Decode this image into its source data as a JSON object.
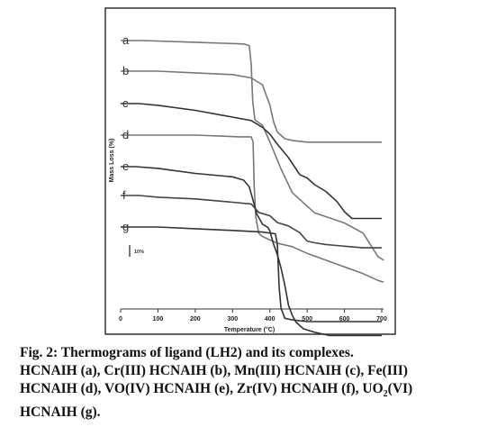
{
  "chart_data": {
    "type": "line",
    "title": "",
    "xlabel": "Temperature (°C)",
    "ylabel": "Mass Loss (%)",
    "xlim": [
      0,
      700
    ],
    "xticks": [
      "0",
      "100",
      "200",
      "300",
      "400",
      "500",
      "600",
      "700"
    ],
    "scale_bar_label": "10%",
    "grid": false,
    "legend": "none",
    "series": [
      {
        "name": "a",
        "color": "#777777",
        "points": [
          [
            0,
            100
          ],
          [
            60,
            100
          ],
          [
            200,
            99.5
          ],
          [
            330,
            99
          ],
          [
            345,
            98.5
          ],
          [
            350,
            93
          ],
          [
            354,
            82
          ],
          [
            360,
            76.5
          ],
          [
            380,
            75
          ],
          [
            400,
            70
          ],
          [
            430,
            62
          ],
          [
            460,
            55
          ],
          [
            500,
            51
          ],
          [
            520,
            49
          ],
          [
            560,
            47.5
          ],
          [
            600,
            46
          ],
          [
            650,
            43
          ],
          [
            690,
            36
          ],
          [
            705,
            35
          ]
        ]
      },
      {
        "name": "b",
        "color": "#777777",
        "points": [
          [
            0,
            100
          ],
          [
            100,
            100
          ],
          [
            200,
            99.5
          ],
          [
            300,
            99
          ],
          [
            350,
            98
          ],
          [
            380,
            96
          ],
          [
            400,
            90
          ],
          [
            410,
            85
          ],
          [
            420,
            82
          ],
          [
            440,
            80
          ],
          [
            460,
            79.5
          ],
          [
            500,
            79
          ],
          [
            600,
            79
          ],
          [
            700,
            79
          ]
        ]
      },
      {
        "name": "c",
        "color": "#333333",
        "points": [
          [
            0,
            100
          ],
          [
            50,
            100
          ],
          [
            100,
            99.5
          ],
          [
            200,
            98
          ],
          [
            300,
            96
          ],
          [
            350,
            95
          ],
          [
            380,
            93
          ],
          [
            400,
            91
          ],
          [
            420,
            88
          ],
          [
            450,
            84
          ],
          [
            480,
            79
          ],
          [
            500,
            78
          ],
          [
            520,
            76
          ],
          [
            550,
            74
          ],
          [
            580,
            71
          ],
          [
            600,
            68
          ],
          [
            620,
            66
          ],
          [
            650,
            66
          ],
          [
            700,
            66
          ]
        ]
      },
      {
        "name": "d",
        "color": "#777777",
        "points": [
          [
            0,
            100
          ],
          [
            60,
            100
          ],
          [
            200,
            100
          ],
          [
            320,
            99.5
          ],
          [
            350,
            99.5
          ],
          [
            355,
            98
          ],
          [
            358,
            85
          ],
          [
            362,
            76
          ],
          [
            370,
            71
          ],
          [
            380,
            70
          ],
          [
            400,
            69
          ],
          [
            420,
            68
          ],
          [
            460,
            67
          ],
          [
            500,
            65
          ],
          [
            550,
            63
          ],
          [
            600,
            61
          ],
          [
            650,
            59
          ],
          [
            690,
            57
          ],
          [
            705,
            56.5
          ]
        ]
      },
      {
        "name": "e",
        "color": "#333333",
        "points": [
          [
            0,
            100
          ],
          [
            40,
            100
          ],
          [
            100,
            99.5
          ],
          [
            200,
            98
          ],
          [
            300,
            97
          ],
          [
            330,
            96
          ],
          [
            345,
            94
          ],
          [
            355,
            90
          ],
          [
            365,
            86
          ],
          [
            380,
            83
          ],
          [
            395,
            82
          ],
          [
            400,
            81
          ],
          [
            410,
            77
          ],
          [
            420,
            74
          ],
          [
            430,
            70
          ],
          [
            440,
            65
          ],
          [
            450,
            59
          ],
          [
            460,
            56
          ],
          [
            470,
            54
          ],
          [
            490,
            52
          ],
          [
            520,
            51
          ],
          [
            560,
            50
          ],
          [
            600,
            50
          ],
          [
            650,
            50
          ],
          [
            700,
            50
          ]
        ]
      },
      {
        "name": "f",
        "color": "#444444",
        "points": [
          [
            0,
            100
          ],
          [
            50,
            100
          ],
          [
            100,
            99.5
          ],
          [
            200,
            99
          ],
          [
            300,
            98
          ],
          [
            350,
            97.5
          ],
          [
            370,
            95
          ],
          [
            400,
            94
          ],
          [
            420,
            92
          ],
          [
            450,
            91
          ],
          [
            480,
            89
          ],
          [
            500,
            86.5
          ],
          [
            520,
            86
          ],
          [
            550,
            85.5
          ],
          [
            600,
            85
          ],
          [
            650,
            84.5
          ],
          [
            700,
            84.5
          ]
        ]
      },
      {
        "name": "g",
        "color": "#333333",
        "points": [
          [
            0,
            100
          ],
          [
            100,
            100
          ],
          [
            200,
            99.5
          ],
          [
            300,
            99
          ],
          [
            380,
            98.5
          ],
          [
            415,
            98
          ],
          [
            420,
            95
          ],
          [
            425,
            82
          ],
          [
            430,
            76
          ],
          [
            440,
            73
          ],
          [
            460,
            72.5
          ],
          [
            500,
            72
          ],
          [
            550,
            72
          ],
          [
            600,
            72
          ],
          [
            650,
            72
          ],
          [
            700,
            72
          ]
        ]
      }
    ]
  },
  "caption": {
    "line1": "Fig. 2: Thermograms of ligand (LH2) and its complexes.",
    "line2": "HCNAIH (a), Cr(III) HCNAIH (b), Mn(III) HCNAIH (c), Fe(III)",
    "line3_pre": "HCNAIH (d), VO(IV) HCNAIH (e), Zr(IV) HCNAIH (f), UO",
    "line3_sub": "2",
    "line3_post": "(VI)",
    "line4": "HCNAIH (g)."
  }
}
